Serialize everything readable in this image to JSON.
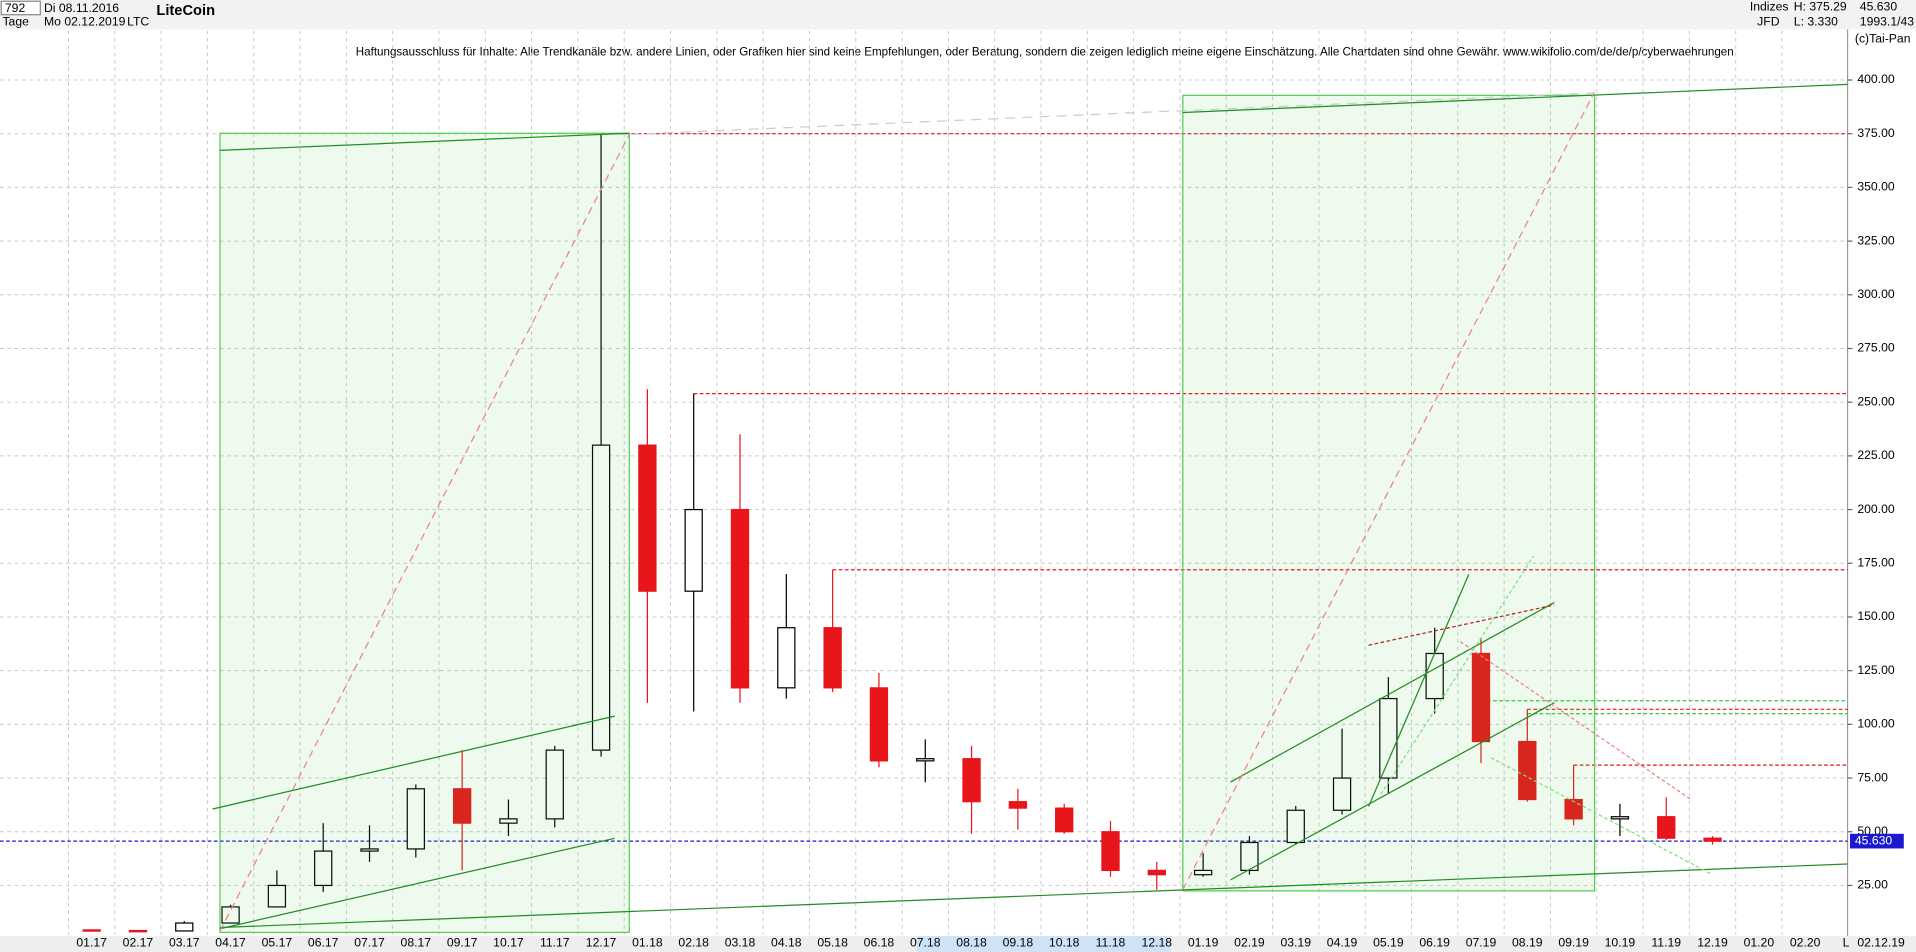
{
  "chart_data": {
    "type": "candlestick",
    "title": "LiteCoin",
    "symbol": "LTC",
    "disclaimer": "Haftungsausschluss für Inhalte: Alle Trendkanäle bzw. andere Linien, oder Grafiken hier sind keine Empfehlungen, oder Beratung, sondern die zeigen lediglich meine eigene Einschätzung. Alle Chartdaten sind ohne Gewähr.  www.wikifolio.com/de/de/p/cyberwaehrungen",
    "header": {
      "count": "792",
      "start_date": "Di 08.11.2016",
      "period": "Tage",
      "end_date": "Mo 02.12.2019",
      "group": "Indizes",
      "source": "JFD",
      "high": "H: 375.29",
      "low": "L: 3.330",
      "ratio": "1993.1/43",
      "copyright": "(c)Tai-Pan",
      "scale_mode": "L",
      "axis_date": "02.12.19"
    },
    "categories": [
      "01.17",
      "02.17",
      "03.17",
      "04.17",
      "05.17",
      "06.17",
      "07.17",
      "08.17",
      "09.17",
      "10.17",
      "11.17",
      "12.17",
      "01.18",
      "02.18",
      "03.18",
      "04.18",
      "05.18",
      "06.18",
      "07.18",
      "08.18",
      "09.18",
      "10.18",
      "11.18",
      "12.18",
      "01.19",
      "02.19",
      "03.19",
      "04.19",
      "05.19",
      "06.19",
      "07.19",
      "08.19",
      "09.19",
      "10.19",
      "11.19",
      "12.19",
      "01.20",
      "02.20"
    ],
    "open": [
      4.3,
      4.0,
      3.8,
      7.5,
      15,
      25,
      41,
      42,
      70,
      54,
      56,
      88,
      230,
      162,
      200,
      117,
      145,
      117,
      83,
      84,
      64,
      61,
      50,
      32,
      30,
      32,
      45,
      60,
      75,
      112,
      133,
      92,
      65,
      56,
      57,
      47,
      null,
      null
    ],
    "high": [
      4.6,
      4.1,
      8.4,
      16,
      32,
      54,
      53,
      72,
      88,
      65,
      90,
      375,
      256,
      254,
      235,
      170,
      172,
      124,
      93,
      90,
      70,
      63,
      55,
      36,
      40,
      48,
      62,
      98,
      122,
      145,
      140,
      107,
      81,
      63,
      66,
      48,
      null,
      null
    ],
    "low": [
      3.6,
      3.6,
      3.6,
      7.5,
      15,
      22,
      36,
      38,
      32,
      48,
      52,
      85,
      110,
      106,
      110,
      112,
      115,
      80,
      73,
      49,
      51,
      49,
      29,
      23,
      29,
      30,
      44,
      58,
      68,
      105,
      82,
      64,
      53,
      48,
      46,
      44,
      null,
      null
    ],
    "close": [
      4.0,
      3.8,
      7.5,
      15,
      25,
      41,
      42,
      70,
      54,
      56,
      88,
      230,
      162,
      200,
      117,
      145,
      117,
      83,
      84,
      64,
      61,
      50,
      32,
      30,
      32,
      45,
      60,
      75,
      112,
      133,
      92,
      65,
      56,
      57,
      47,
      45.63,
      null,
      null
    ],
    "up_color": "#000000",
    "down_color": "#e8151b",
    "ylim": [
      2,
      423
    ],
    "yticks": [
      {
        "value": 25,
        "label": "25.00"
      },
      {
        "value": 50,
        "label": "50.00"
      },
      {
        "value": 75,
        "label": "75.00"
      },
      {
        "value": 100,
        "label": "100.00"
      },
      {
        "value": 125,
        "label": "125.00"
      },
      {
        "value": 150,
        "label": "150.00"
      },
      {
        "value": 175,
        "label": "175.00"
      },
      {
        "value": 200,
        "label": "200.00"
      },
      {
        "value": 225,
        "label": "225.00"
      },
      {
        "value": 250,
        "label": "250.00"
      },
      {
        "value": 275,
        "label": "275.00"
      },
      {
        "value": 300,
        "label": "300.00"
      },
      {
        "value": 325,
        "label": "325.00"
      },
      {
        "value": 350,
        "label": "350.00"
      },
      {
        "value": 375,
        "label": "375.00"
      },
      {
        "value": 400,
        "label": "400.00"
      }
    ],
    "grid": true,
    "levels": [
      {
        "value": 375,
        "color": "#e8151b"
      },
      {
        "value": 254,
        "color": "#e8151b"
      },
      {
        "value": 172,
        "color": "#e8151b"
      },
      {
        "value": 107,
        "color": "#e8151b"
      },
      {
        "value": 81,
        "color": "#e8151b"
      },
      {
        "value": 111,
        "color": "#33cc33"
      },
      {
        "value": 105,
        "color": "#33cc33"
      }
    ],
    "last": {
      "value": 45.63,
      "label": "45.630",
      "color": "#1a1acc"
    }
  }
}
